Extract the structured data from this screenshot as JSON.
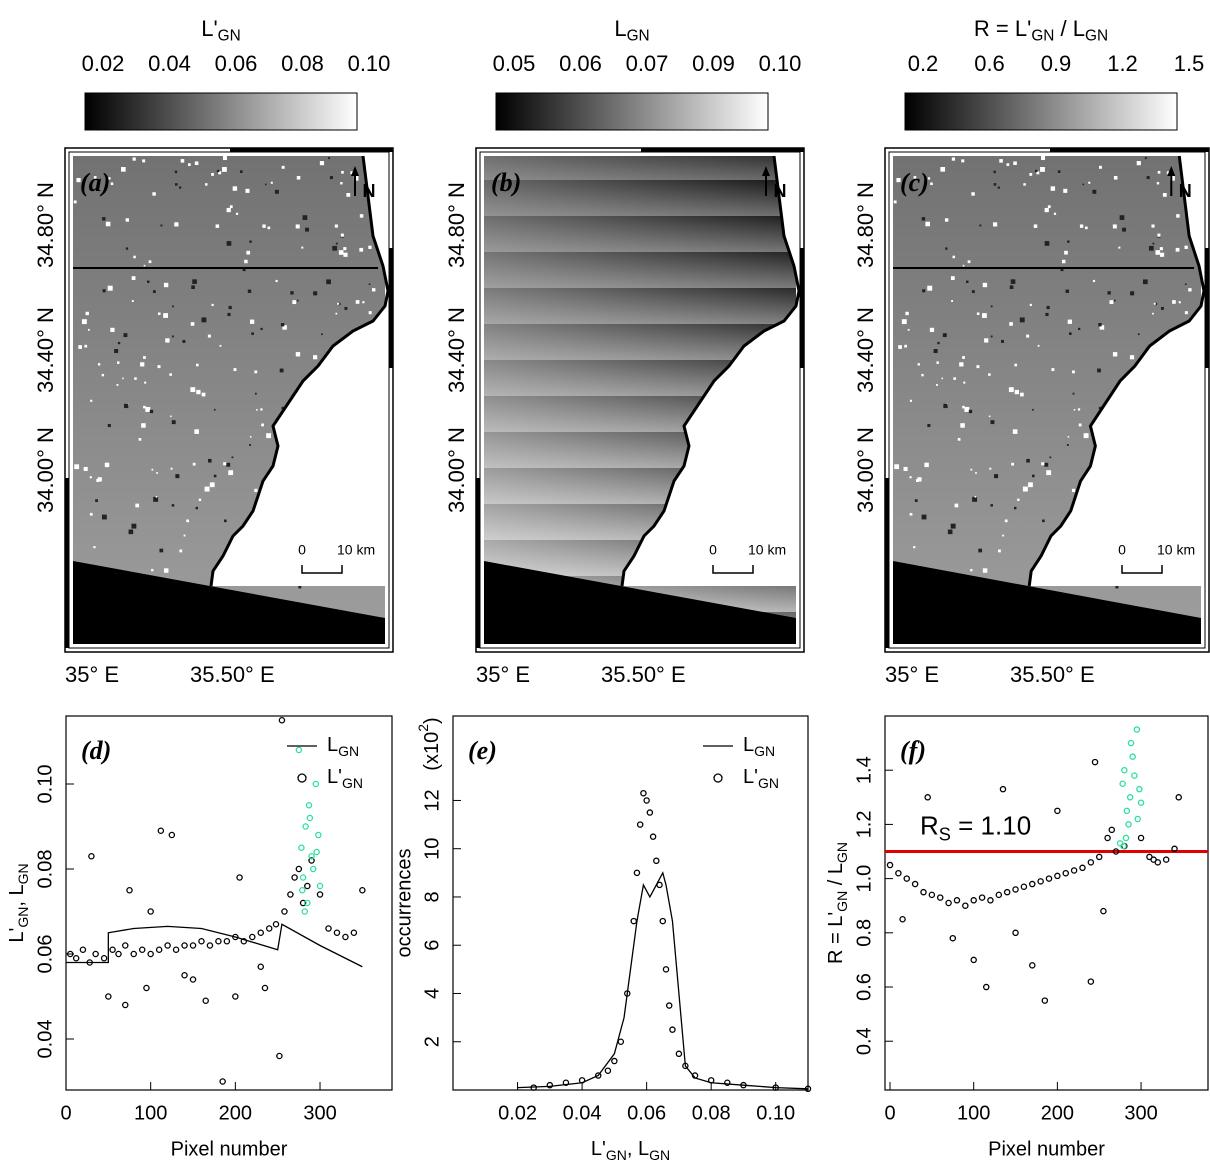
{
  "chart_data": [
    {
      "type": "map",
      "panel_label": "(a)",
      "colorbar_title": [
        {
          "text": "L'"
        },
        {
          "text": "GN",
          "sub": true
        }
      ],
      "colorbar_ticks": [
        "0.02",
        "0.04",
        "0.06",
        "0.08",
        "0.10"
      ],
      "lat_labels": [
        "34.80° N",
        "34.40° N",
        "34.00° N"
      ],
      "lon_labels": [
        "35° E",
        "35.50° E"
      ],
      "north": "N",
      "scale_labels": [
        "0",
        "10 km"
      ]
    },
    {
      "type": "map",
      "panel_label": "(b)",
      "colorbar_title": [
        {
          "text": "L"
        },
        {
          "text": "GN",
          "sub": true
        }
      ],
      "colorbar_ticks": [
        "0.05",
        "0.06",
        "0.07",
        "0.09",
        "0.10"
      ],
      "lat_labels": [
        "34.80° N",
        "34.40° N",
        "34.00° N"
      ],
      "lon_labels": [
        "35° E",
        "35.50° E"
      ],
      "north": "N",
      "scale_labels": [
        "0",
        "10 km"
      ]
    },
    {
      "type": "map",
      "panel_label": "(c)",
      "colorbar_title": [
        {
          "text": "R = L'"
        },
        {
          "text": "GN",
          "sub": true
        },
        {
          "text": " / L"
        },
        {
          "text": "GN",
          "sub": true
        }
      ],
      "colorbar_ticks": [
        "0.2",
        "0.6",
        "0.9",
        "1.2",
        "1.5"
      ],
      "lat_labels": [
        "34.80° N",
        "34.40° N",
        "34.00° N"
      ],
      "lon_labels": [
        "35° E",
        "35.50° E"
      ],
      "north": "N",
      "scale_labels": [
        "0",
        "10 km"
      ]
    },
    {
      "type": "scatter",
      "panel_label": "(d)",
      "xlabel": "Pixel number",
      "ylabel": [
        {
          "text": "L'"
        },
        {
          "text": "GN",
          "sub": true
        },
        {
          "text": ", L"
        },
        {
          "text": "GN",
          "sub": true
        }
      ],
      "xlim": [
        0,
        385
      ],
      "xticks": [
        0,
        100,
        200,
        300
      ],
      "ylim": [
        0.028,
        0.116
      ],
      "yticks": [
        0.04,
        0.06,
        0.08,
        {
          "value": 0.1,
          "label": "0.10"
        }
      ],
      "legend": "upper right",
      "series": [
        {
          "name": [
            {
              "text": "L"
            },
            {
              "text": "GN",
              "sub": true
            }
          ],
          "style": "line",
          "color": "#000000",
          "x": [
            0,
            50,
            50,
            80,
            120,
            160,
            200,
            250,
            250,
            255,
            300,
            350
          ],
          "values": [
            0.058,
            0.058,
            0.065,
            0.066,
            0.0665,
            0.066,
            0.064,
            0.061,
            0.061,
            0.067,
            0.062,
            0.057
          ]
        },
        {
          "name": [
            {
              "text": "L'"
            },
            {
              "text": "GN",
              "sub": true
            }
          ],
          "style": "points",
          "color": "#000000",
          "x": [
            5,
            12,
            20,
            28,
            35,
            45,
            55,
            62,
            70,
            80,
            90,
            100,
            110,
            120,
            130,
            140,
            150,
            160,
            170,
            180,
            190,
            200,
            210,
            220,
            230,
            240,
            248,
            30,
            50,
            75,
            95,
            112,
            125,
            140,
            165,
            185,
            205,
            235,
            252,
            255,
            258,
            265,
            270,
            275,
            280,
            285,
            290,
            300,
            310,
            320,
            330,
            340,
            350,
            70,
            100,
            150,
            200,
            230
          ],
          "values": [
            0.06,
            0.059,
            0.061,
            0.058,
            0.06,
            0.059,
            0.061,
            0.06,
            0.062,
            0.06,
            0.061,
            0.06,
            0.061,
            0.062,
            0.061,
            0.062,
            0.062,
            0.063,
            0.062,
            0.063,
            0.063,
            0.064,
            0.063,
            0.064,
            0.065,
            0.066,
            0.067,
            0.083,
            0.05,
            0.075,
            0.052,
            0.089,
            0.088,
            0.055,
            0.049,
            0.03,
            0.078,
            0.052,
            0.036,
            0.115,
            0.07,
            0.074,
            0.078,
            0.08,
            0.072,
            0.076,
            0.082,
            0.074,
            0.066,
            0.065,
            0.064,
            0.065,
            0.075,
            0.048,
            0.07,
            0.054,
            0.05,
            0.057
          ]
        },
        {
          "style": "points",
          "color": "#2de09a",
          "x": [
            275,
            278,
            280,
            283,
            285,
            287,
            290,
            292,
            295,
            298,
            300,
            282,
            288,
            296,
            279
          ],
          "values": [
            0.108,
            0.085,
            0.078,
            0.09,
            0.072,
            0.095,
            0.083,
            0.08,
            0.1,
            0.088,
            0.076,
            0.07,
            0.092,
            0.084,
            0.075
          ]
        }
      ]
    },
    {
      "type": "scatter",
      "panel_label": "(e)",
      "xlabel": [
        {
          "text": "L'"
        },
        {
          "text": "GN",
          "sub": true
        },
        {
          "text": ", L"
        },
        {
          "text": "GN",
          "sub": true
        }
      ],
      "ylabel": "occurrences",
      "y_multiplier": [
        {
          "text": "(x10"
        },
        {
          "text": "2",
          "sup": true
        },
        {
          "text": ")"
        }
      ],
      "xlim": [
        0,
        0.11
      ],
      "xticks": [
        0.02,
        0.04,
        0.06,
        0.08,
        {
          "value": 0.1,
          "label": "0.10"
        }
      ],
      "ylim": [
        0,
        15.5
      ],
      "yticks": [
        2,
        4,
        6,
        8,
        10,
        12
      ],
      "legend": "upper right",
      "series": [
        {
          "name": [
            {
              "text": "L"
            },
            {
              "text": "GN",
              "sub": true
            }
          ],
          "style": "line",
          "color": "#000000",
          "x": [
            0.02,
            0.03,
            0.04,
            0.045,
            0.05,
            0.053,
            0.055,
            0.057,
            0.059,
            0.061,
            0.063,
            0.065,
            0.066,
            0.068,
            0.07,
            0.072,
            0.075,
            0.08,
            0.09,
            0.1,
            0.11
          ],
          "values": [
            0.1,
            0.15,
            0.3,
            0.6,
            1.5,
            3,
            5,
            7,
            8.5,
            8,
            8.5,
            9,
            8.5,
            7,
            4,
            1,
            0.5,
            0.3,
            0.2,
            0.1,
            0.05
          ]
        },
        {
          "name": [
            {
              "text": "L'"
            },
            {
              "text": "GN",
              "sub": true
            }
          ],
          "style": "points",
          "color": "#000000",
          "x": [
            0.025,
            0.03,
            0.035,
            0.04,
            0.045,
            0.048,
            0.05,
            0.052,
            0.054,
            0.056,
            0.057,
            0.058,
            0.059,
            0.06,
            0.061,
            0.062,
            0.063,
            0.064,
            0.065,
            0.066,
            0.067,
            0.068,
            0.07,
            0.072,
            0.075,
            0.08,
            0.085,
            0.09,
            0.1,
            0.11
          ],
          "values": [
            0.1,
            0.2,
            0.3,
            0.4,
            0.6,
            0.8,
            1.2,
            2,
            4,
            7,
            9,
            11,
            12.3,
            12,
            11.5,
            10.5,
            9.5,
            8.5,
            7,
            5,
            3.5,
            2.5,
            1.5,
            1,
            0.6,
            0.4,
            0.3,
            0.2,
            0.1,
            0.05
          ]
        }
      ]
    },
    {
      "type": "scatter",
      "panel_label": "(f)",
      "xlabel": "Pixel number",
      "ylabel": [
        {
          "text": "R = L'"
        },
        {
          "text": "GN",
          "sub": true
        },
        {
          "text": " / L"
        },
        {
          "text": "GN",
          "sub": true
        }
      ],
      "xlim": [
        -6,
        380
      ],
      "xticks": [
        0,
        100,
        200,
        300
      ],
      "ylim": [
        0.22,
        1.6
      ],
      "yticks": [
        0.4,
        0.6,
        0.8,
        {
          "value": 1.0,
          "label": "1.0"
        },
        1.2,
        1.4
      ],
      "hline": {
        "value": 1.1,
        "color": "#e00000",
        "label": [
          {
            "text": "R"
          },
          {
            "text": "S",
            "sub": true
          },
          {
            "text": " = 1.10"
          }
        ]
      },
      "series": [
        {
          "style": "points",
          "color": "#000000",
          "x": [
            0,
            10,
            20,
            30,
            40,
            50,
            60,
            70,
            80,
            90,
            100,
            110,
            120,
            130,
            140,
            150,
            160,
            170,
            180,
            190,
            200,
            210,
            220,
            230,
            240,
            250,
            260,
            265,
            270,
            280,
            300,
            310,
            315,
            320,
            330,
            340,
            15,
            45,
            75,
            100,
            115,
            135,
            150,
            170,
            185,
            200,
            240,
            245,
            255,
            345
          ],
          "values": [
            1.05,
            1.02,
            1.0,
            0.98,
            0.95,
            0.94,
            0.93,
            0.91,
            0.92,
            0.9,
            0.92,
            0.93,
            0.92,
            0.94,
            0.95,
            0.96,
            0.97,
            0.98,
            0.99,
            1.0,
            1.01,
            1.02,
            1.03,
            1.04,
            1.06,
            1.08,
            1.15,
            1.18,
            1.1,
            1.12,
            1.15,
            1.08,
            1.07,
            1.06,
            1.07,
            1.11,
            0.85,
            1.3,
            0.78,
            0.7,
            0.6,
            1.33,
            0.8,
            0.68,
            0.55,
            1.25,
            0.62,
            1.43,
            0.88,
            1.3
          ]
        },
        {
          "style": "points",
          "color": "#2de09a",
          "x": [
            275,
            278,
            280,
            283,
            285,
            287,
            290,
            292,
            295,
            298,
            300,
            282,
            288,
            296,
            279
          ],
          "values": [
            1.13,
            1.35,
            1.4,
            1.25,
            1.2,
            1.3,
            1.45,
            1.38,
            1.55,
            1.33,
            1.28,
            1.15,
            1.5,
            1.22,
            1.12
          ]
        }
      ]
    }
  ]
}
